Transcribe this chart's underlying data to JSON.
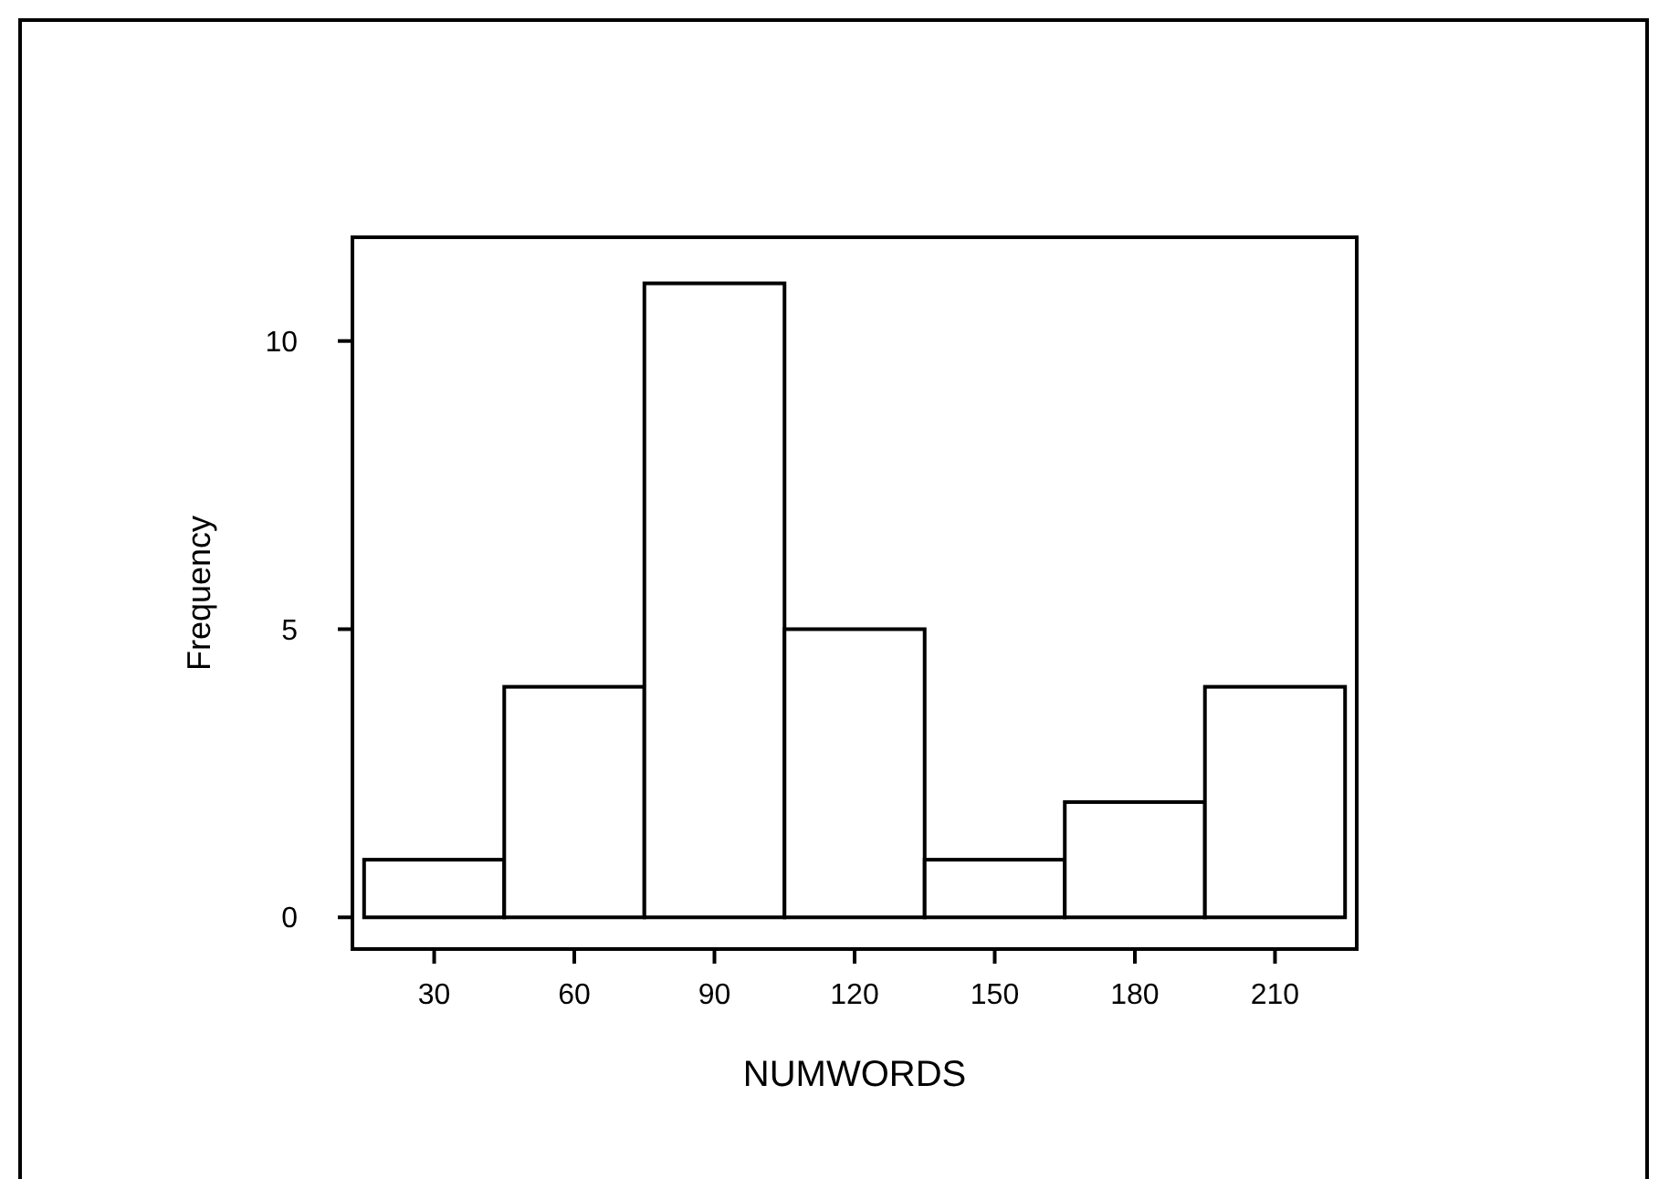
{
  "chart_data": {
    "type": "histogram",
    "xlabel": "NUMWORDS",
    "ylabel": "Frequency",
    "bins": [
      15,
      45,
      75,
      105,
      135,
      165,
      195,
      225
    ],
    "values": [
      1,
      4,
      11,
      5,
      1,
      2,
      4
    ],
    "color": "#ffffff",
    "xlim": [
      12.5,
      227.5
    ],
    "xticks": [
      30,
      60,
      90,
      120,
      150,
      180,
      210
    ],
    "ylim": [
      -0.55,
      11.8
    ],
    "yticks": [
      0,
      5,
      10
    ],
    "grid": false
  }
}
